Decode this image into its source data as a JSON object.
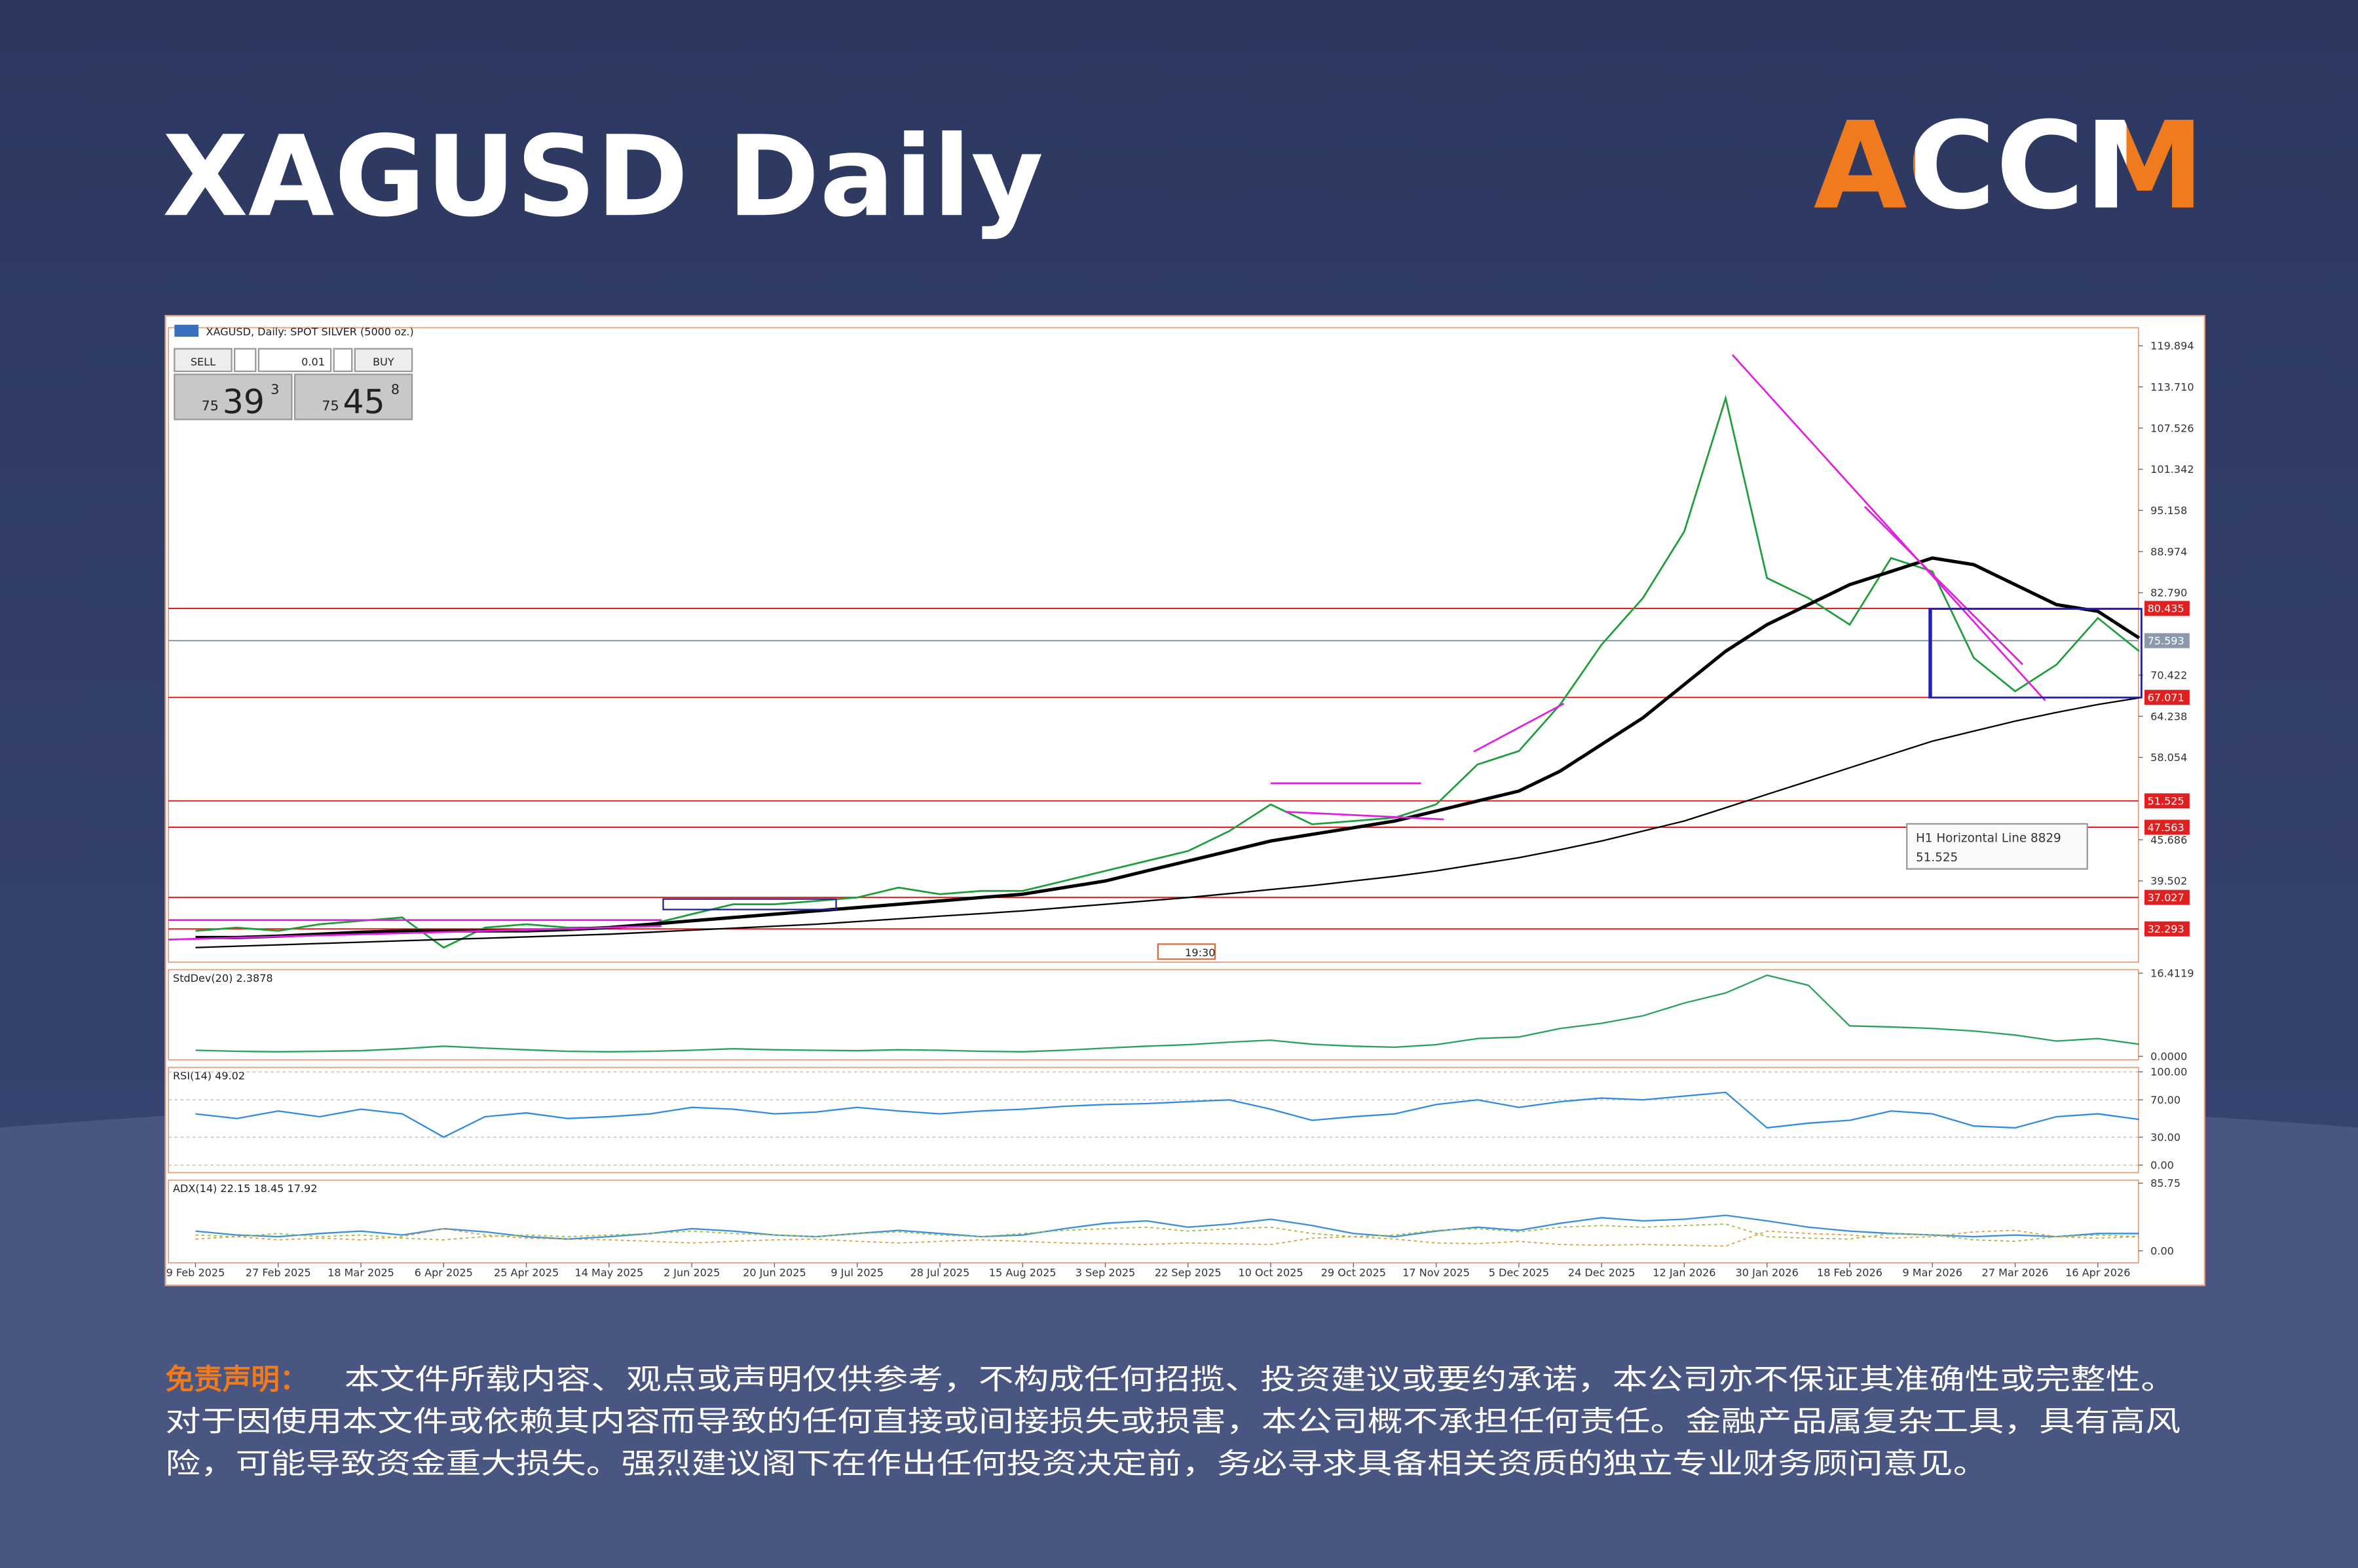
{
  "header": {
    "title": "XAGUSD Daily",
    "logo": "ACCM"
  },
  "terminal": {
    "sell": "SELL",
    "buy": "BUY",
    "volume": "0.01",
    "bid": [
      "75",
      "39",
      "3"
    ],
    "ask": [
      "75",
      "45",
      "8"
    ],
    "time_label": "19:30",
    "tooltip": [
      "H1 Horizontal Line 8829",
      "51.525"
    ]
  },
  "chart_data": [
    {
      "type": "line",
      "title": "XAGUSD, Daily: SPOT SILVER (5000 oz.)",
      "categories": [
        "9 Feb 2025",
        null,
        "27 Feb 2025",
        null,
        "18 Mar 2025",
        null,
        "6 Apr 2025",
        null,
        "25 Apr 2025",
        null,
        "14 May 2025",
        null,
        "2 Jun 2025",
        null,
        "20 Jun 2025",
        null,
        "9 Jul 2025",
        null,
        "28 Jul 2025",
        null,
        "15 Aug 2025",
        null,
        "3 Sep 2025",
        null,
        "22 Sep 2025",
        null,
        "10 Oct 2025",
        null,
        "29 Oct 2025",
        null,
        "17 Nov 2025",
        null,
        "5 Dec 2025",
        null,
        "24 Dec 2025",
        null,
        "12 Jan 2026",
        null,
        "30 Jan 2026",
        null,
        "18 Feb 2026",
        null,
        "9 Mar 2026",
        null,
        "27 Mar 2026",
        null,
        "16 Apr 2026",
        null
      ],
      "series": [
        {
          "color": "#1f9d3a",
          "line_width": 1.2,
          "values": [
            32,
            32.5,
            32,
            33,
            33.5,
            34,
            29.5,
            32.5,
            33,
            32.5,
            32.5,
            33,
            34.5,
            36,
            36,
            36.5,
            37,
            38.5,
            37.5,
            38,
            38,
            39.5,
            41,
            42.5,
            44,
            47,
            51,
            48,
            48.5,
            49,
            51,
            57,
            59,
            66,
            75,
            82,
            92,
            112,
            85,
            82,
            78,
            88,
            86,
            73,
            68,
            72,
            79,
            74
          ]
        },
        {
          "color": "#000000",
          "line_width": 2.2,
          "values": [
            31,
            31,
            31.2,
            31.5,
            31.8,
            32,
            32,
            32,
            32,
            32.2,
            32.5,
            33,
            33.5,
            34,
            34.5,
            35,
            35.5,
            36,
            36.5,
            37,
            37.5,
            38.5,
            39.5,
            41,
            42.5,
            44,
            45.5,
            46.5,
            47.5,
            48.5,
            50,
            51.5,
            53,
            56,
            60,
            64,
            69,
            74,
            78,
            81,
            84,
            86,
            88,
            87,
            84,
            81,
            80,
            76
          ]
        },
        {
          "color": "#000000",
          "line_width": 1,
          "values": [
            29.5,
            29.7,
            29.9,
            30.1,
            30.3,
            30.5,
            30.7,
            30.9,
            31.1,
            31.3,
            31.5,
            31.8,
            32.1,
            32.4,
            32.7,
            33,
            33.4,
            33.8,
            34.2,
            34.6,
            35,
            35.5,
            36,
            36.5,
            37,
            37.6,
            38.2,
            38.8,
            39.5,
            40.2,
            41,
            42,
            43,
            44.2,
            45.5,
            47,
            48.5,
            50.5,
            52.5,
            54.5,
            56.5,
            58.5,
            60.5,
            62,
            63.5,
            64.8,
            66,
            67
          ]
        }
      ],
      "ylim": [
        27.3,
        122.6
      ],
      "yticks": [
        119.894,
        {
          "value": 113.71,
          "label": "113.710"
        },
        107.526,
        101.342,
        95.158,
        88.974,
        {
          "value": 82.79,
          "label": "82.790"
        },
        70.422,
        64.238,
        58.054,
        45.686,
        39.502
      ],
      "grid": false,
      "levels": [
        {
          "value": 80.435,
          "color": "#e02020"
        },
        {
          "value": 75.593,
          "color": "#8a9aaa"
        },
        {
          "value": 67.071,
          "color": "#e02020"
        },
        {
          "value": 51.525,
          "color": "#e02020"
        },
        {
          "value": 47.563,
          "color": "#e02020"
        },
        {
          "value": 37.027,
          "color": "#e02020"
        },
        {
          "value": 32.293,
          "color": "#e02020"
        }
      ]
    },
    {
      "type": "line",
      "title": "StdDev(20) 2.3878",
      "series": [
        {
          "color": "#2aa060",
          "line_width": 1,
          "values": [
            1.2,
            1,
            0.9,
            1,
            1.1,
            1.5,
            2,
            1.6,
            1.3,
            1,
            0.9,
            1,
            1.2,
            1.5,
            1.3,
            1.2,
            1.1,
            1.3,
            1.2,
            1,
            0.9,
            1.2,
            1.6,
            2,
            2.3,
            2.8,
            3.2,
            2.4,
            2,
            1.8,
            2.3,
            3.5,
            3.8,
            5.5,
            6.5,
            8,
            10.5,
            12.5,
            16,
            14,
            6,
            5.8,
            5.5,
            5,
            4.2,
            3,
            3.5,
            2.4
          ]
        }
      ],
      "ylim": [
        -0.7,
        17.1
      ],
      "yticks": [
        16.4119,
        {
          "value": 0,
          "label": "0.0000"
        }
      ],
      "grid": false
    },
    {
      "type": "line",
      "title": "RSI(14) 49.02",
      "series": [
        {
          "color": "#2f8ae0",
          "line_width": 1,
          "values": [
            55,
            50,
            58,
            52,
            60,
            55,
            30,
            52,
            56,
            50,
            52,
            55,
            62,
            60,
            55,
            57,
            62,
            58,
            55,
            58,
            60,
            63,
            65,
            66,
            68,
            70,
            60,
            48,
            52,
            55,
            65,
            70,
            62,
            68,
            72,
            70,
            74,
            78,
            40,
            45,
            48,
            58,
            55,
            42,
            40,
            52,
            55,
            49
          ]
        }
      ],
      "ylim": [
        -8,
        104.8
      ],
      "yticks": [
        {
          "value": 100,
          "label": "100.00"
        },
        {
          "value": 70,
          "label": "70.00"
        },
        {
          "value": 30,
          "label": "30.00"
        },
        {
          "value": 0,
          "label": "0.00"
        }
      ],
      "grid": true
    },
    {
      "type": "line",
      "title": "ADX(14) 22.15 18.45 17.92",
      "series": [
        {
          "color": "#3a8fd8",
          "line_width": 1,
          "values": [
            25,
            20,
            18,
            22,
            25,
            20,
            28,
            24,
            18,
            15,
            18,
            22,
            28,
            25,
            20,
            18,
            22,
            26,
            22,
            18,
            20,
            28,
            35,
            38,
            30,
            34,
            40,
            32,
            22,
            18,
            25,
            30,
            26,
            35,
            42,
            38,
            40,
            45,
            38,
            30,
            25,
            22,
            20,
            18,
            20,
            18,
            22,
            22
          ]
        },
        {
          "color": "#9ac23c",
          "line_width": 0.8,
          "dash": true,
          "values": [
            20,
            18,
            22,
            18,
            20,
            16,
            14,
            18,
            20,
            18,
            20,
            22,
            25,
            22,
            20,
            18,
            22,
            24,
            20,
            18,
            22,
            26,
            28,
            30,
            25,
            28,
            30,
            22,
            18,
            20,
            26,
            28,
            24,
            30,
            32,
            30,
            32,
            34,
            18,
            16,
            15,
            22,
            20,
            14,
            12,
            18,
            20,
            18
          ]
        },
        {
          "color": "#e0a040",
          "line_width": 0.8,
          "dash": true,
          "values": [
            15,
            18,
            14,
            16,
            14,
            18,
            28,
            20,
            16,
            15,
            14,
            12,
            10,
            12,
            14,
            15,
            12,
            10,
            12,
            14,
            12,
            10,
            9,
            8,
            10,
            9,
            8,
            16,
            18,
            15,
            10,
            9,
            12,
            8,
            7,
            8,
            7,
            6,
            25,
            22,
            20,
            16,
            18,
            24,
            26,
            18,
            16,
            18
          ]
        }
      ],
      "ylim": [
        -15.2,
        89.6
      ],
      "yticks": [
        85.75,
        {
          "value": 0,
          "label": "0.00"
        }
      ],
      "grid": false
    }
  ],
  "disclaimer": {
    "label": "免责声明：",
    "lines": [
      "本文件所载内容、观点或声明仅供参考，不构成任何招揽、投资建议或要约承诺，本公司亦不保证其准确性或完整性。",
      "对于因使用本文件或依赖其内容而导致的任何直接或间接损失或损害，本公司概不承担任何责任。金融产品属复杂工具，具有高风",
      "险，可能导致资金重大损失。强烈建议阁下在作出任何投资决定前，务必寻求具备相关资质的独立专业财务顾问意见。"
    ]
  }
}
